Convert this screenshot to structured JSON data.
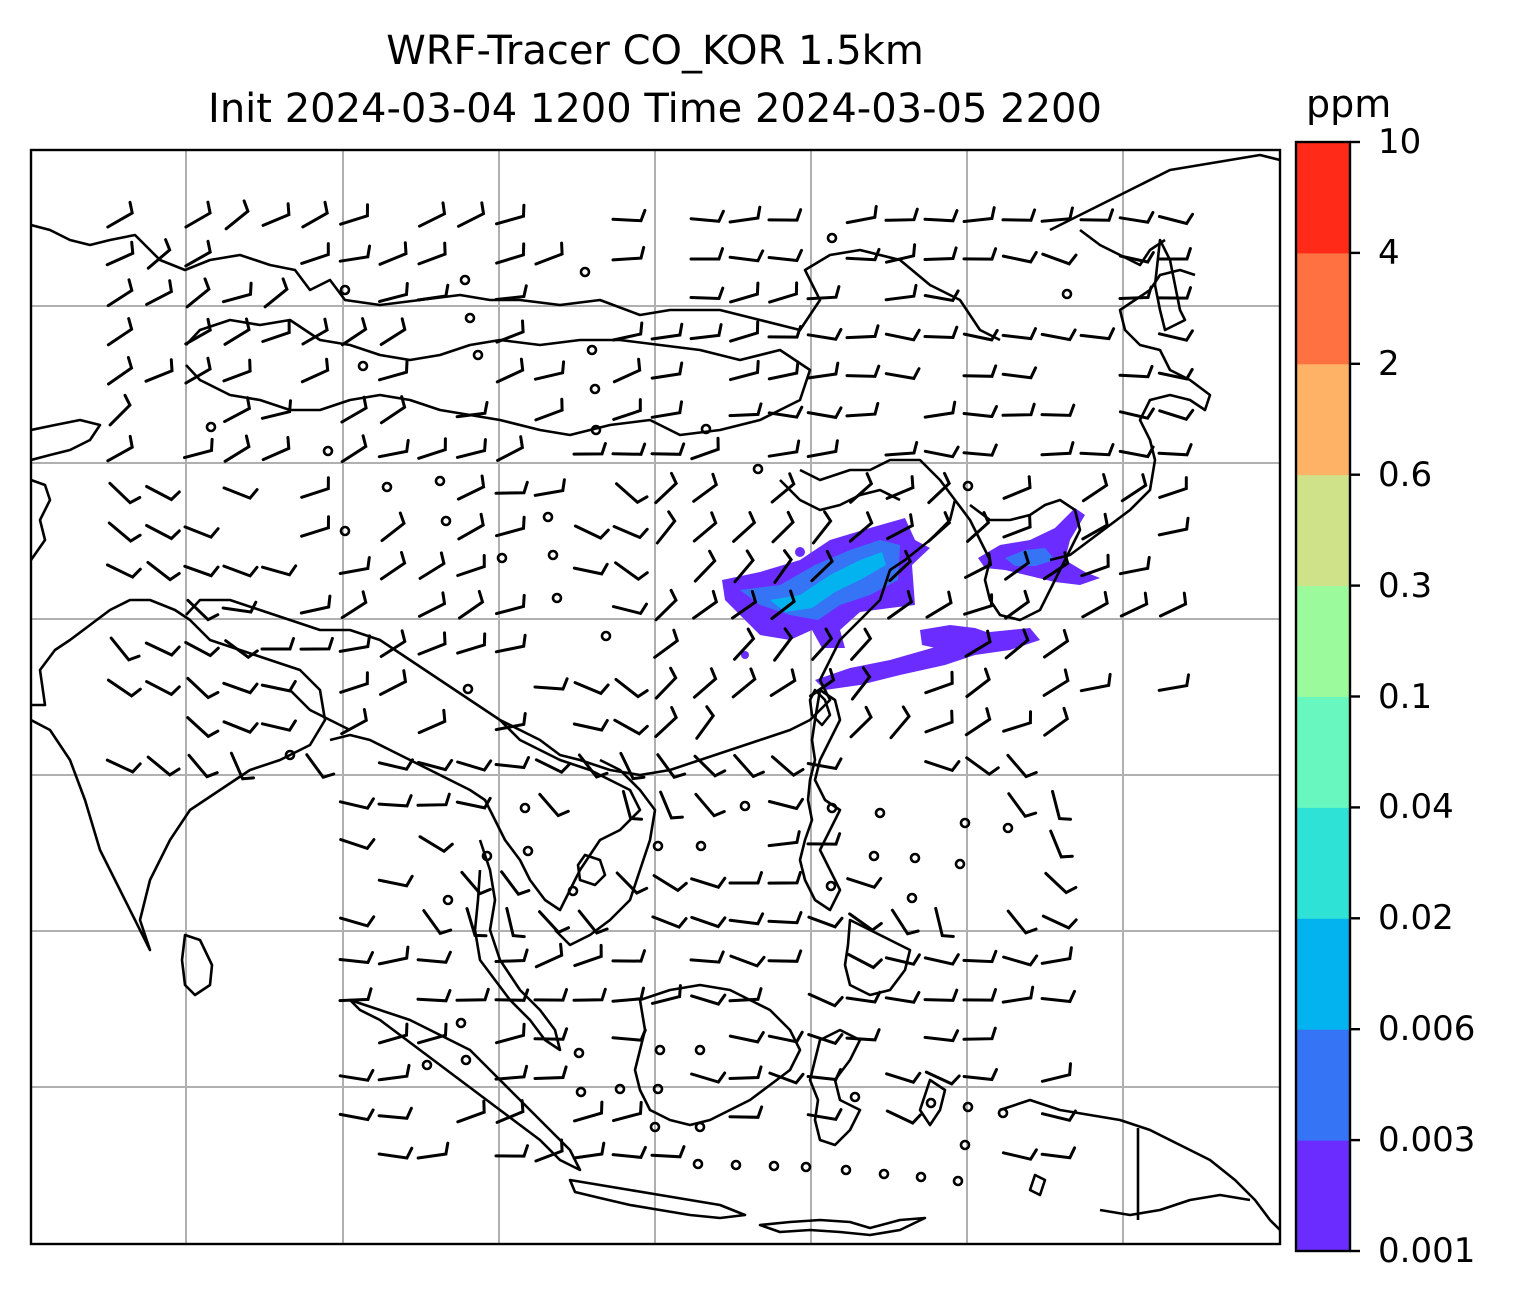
{
  "title": {
    "line1": "WRF-Tracer CO_KOR 1.5km",
    "line2": "Init 2024-03-04 1200 Time 2024-03-05 2200"
  },
  "colorbar": {
    "unit": "ppm",
    "levels": [
      "0.001",
      "0.003",
      "0.006",
      "0.02",
      "0.04",
      "0.1",
      "0.3",
      "0.6",
      "2",
      "4",
      "10"
    ],
    "colors": [
      "#6a2cff",
      "#3575f5",
      "#03b3ef",
      "#2fe2d6",
      "#68f7be",
      "#9bfa9c",
      "#cfe289",
      "#feb265",
      "#ff7140",
      "#ff2a17"
    ]
  },
  "colors": {
    "coastline": "#000000",
    "gridline": "#b0b0b0",
    "frame": "#000000",
    "plume_low": "#6a2cff",
    "plume_mid": "#3575f5",
    "plume_core": "#03b3ef"
  },
  "wind_field": {
    "symbol": "wind-barb",
    "calm_symbol": "open-circle"
  }
}
